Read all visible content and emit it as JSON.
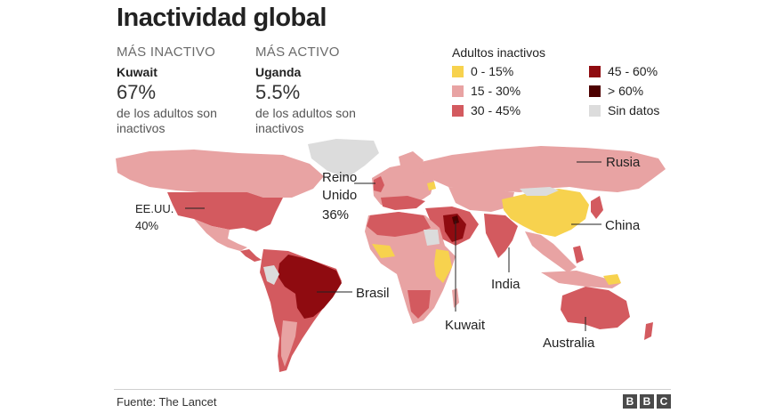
{
  "title": "Inactividad global",
  "most_inactive": {
    "label": "MÁS INACTIVO",
    "country": "Kuwait",
    "value": "67%",
    "description": "de los adultos son inactivos"
  },
  "most_active": {
    "label": "MÁS ACTIVO",
    "country": "Uganda",
    "value": "5.5%",
    "description": "de los adultos son inactivos"
  },
  "legend": {
    "title": "Adultos inactivos",
    "items": [
      {
        "label": "0 - 15%",
        "color": "#f7d24e"
      },
      {
        "label": "15 - 30%",
        "color": "#e8a3a3"
      },
      {
        "label": "30 - 45%",
        "color": "#d35a5f"
      },
      {
        "label": "45 - 60%",
        "color": "#8f0b10"
      },
      {
        "label": "> 60%",
        "color": "#4d0000"
      },
      {
        "label": "Sin datos",
        "color": "#dcdcdc"
      }
    ]
  },
  "map_labels": {
    "usa_line1": "EE.UU.",
    "usa_line2": "40%",
    "uk_line1": "Reino",
    "uk_line2": "Unido",
    "uk_line3": "36%",
    "russia": "Rusia",
    "china": "China",
    "brazil": "Brasil",
    "india": "India",
    "kuwait": "Kuwait",
    "australia": "Australia"
  },
  "source": "Fuente: The Lancet",
  "brand": {
    "letters": [
      "B",
      "B",
      "C"
    ]
  }
}
